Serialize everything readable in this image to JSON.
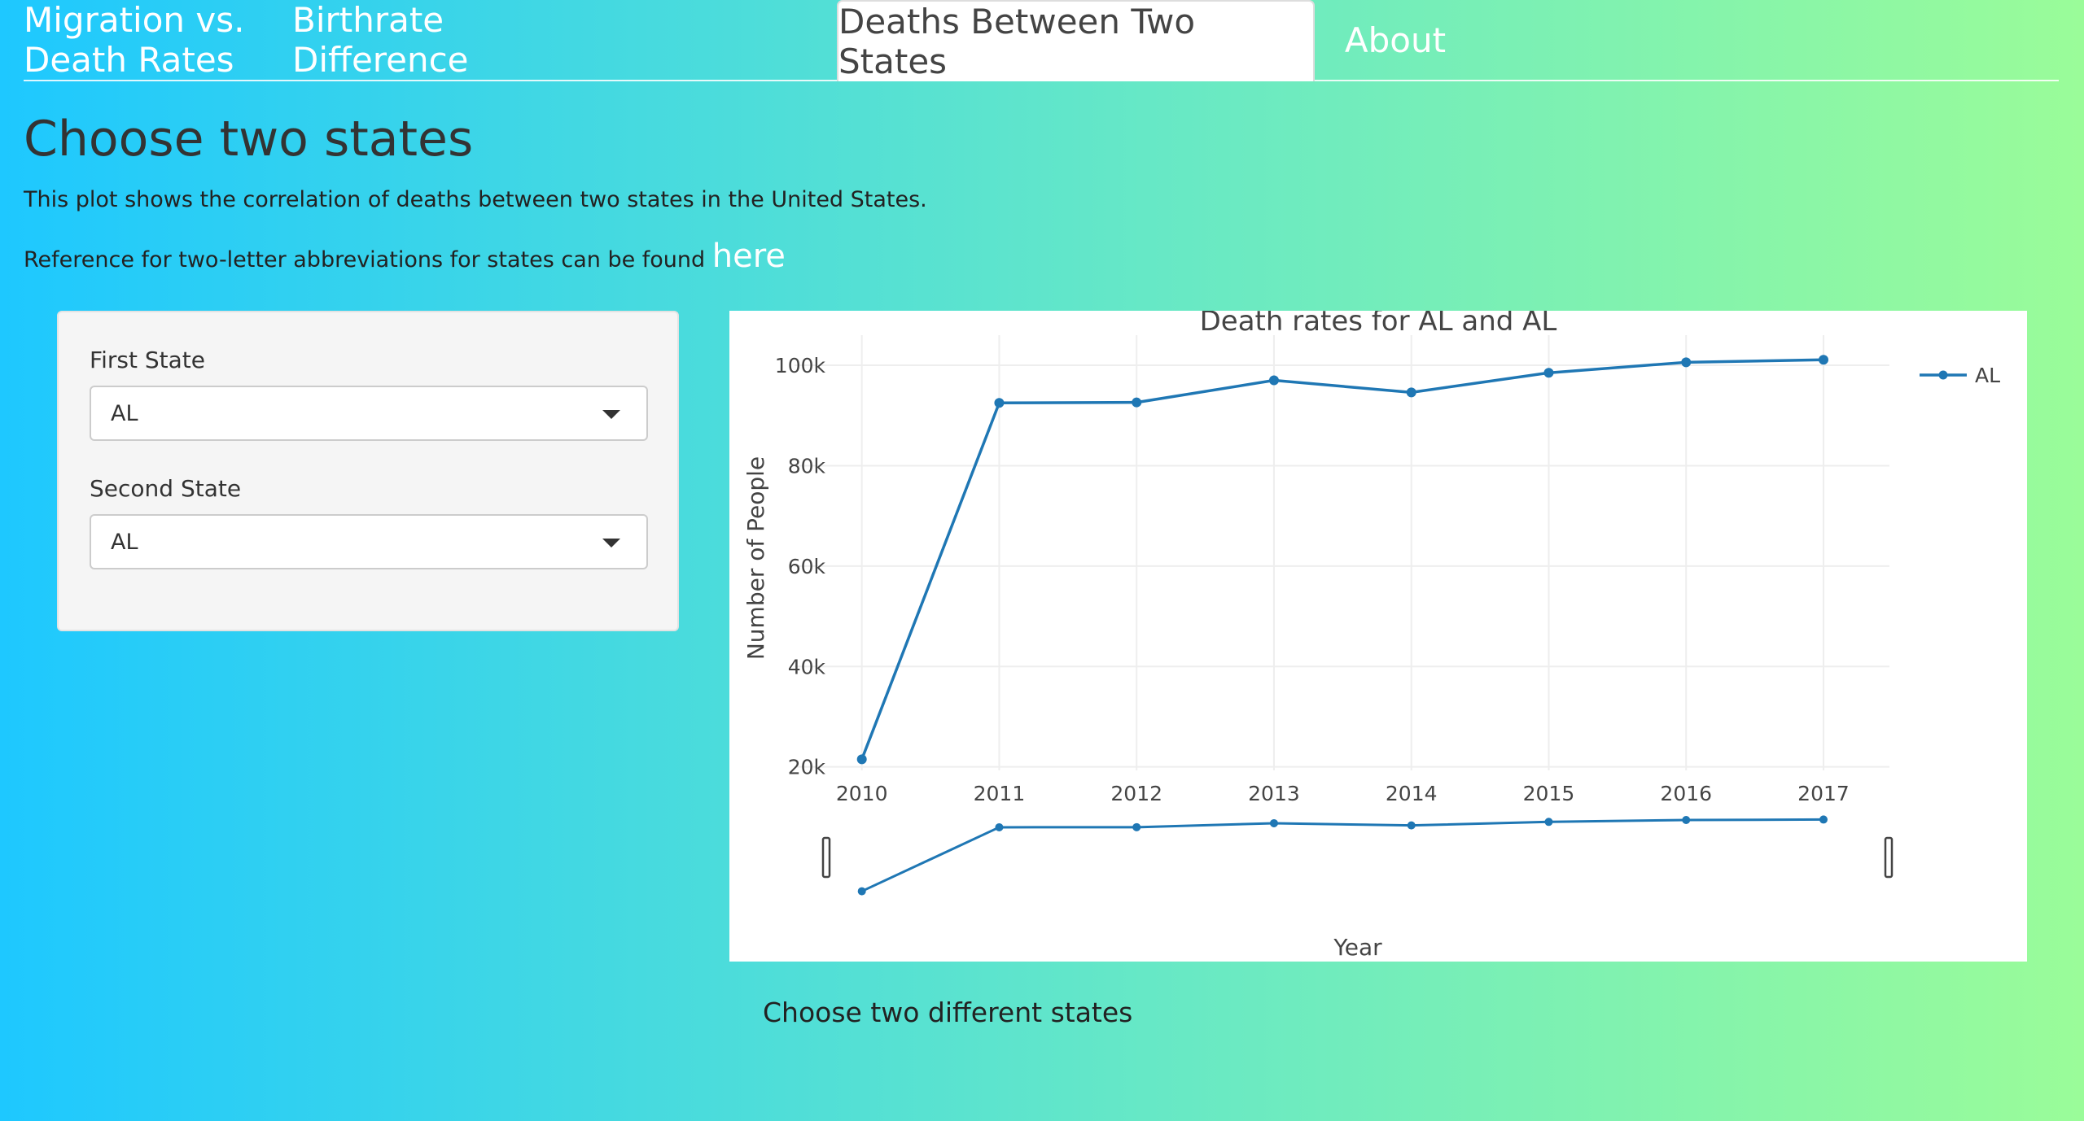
{
  "nav": {
    "tabs": [
      {
        "label": "Migration vs. Death Rates"
      },
      {
        "label": "Birthrate Difference"
      },
      {
        "label": "Deaths Between Two States"
      },
      {
        "label": "About"
      }
    ]
  },
  "page": {
    "title": "Choose two states",
    "description": "This plot shows the correlation of deaths between two states in the United States.",
    "reference_text": "Reference for two-letter abbreviations for states can be found",
    "reference_link": "here",
    "status_message": "Choose two different states"
  },
  "controls": {
    "first_state_label": "First State",
    "first_state_value": "AL",
    "second_state_label": "Second State",
    "second_state_value": "AL"
  },
  "colors": {
    "line": "#1f77b4",
    "grid": "#eeeeee"
  },
  "chart_data": {
    "type": "line",
    "title": "Death rates for  AL and AL",
    "xlabel": "Year",
    "ylabel": "Number of People",
    "x": [
      2010,
      2011,
      2012,
      2013,
      2014,
      2015,
      2016,
      2017
    ],
    "series": [
      {
        "name": "AL",
        "values": [
          21500,
          92500,
          92600,
          97000,
          94600,
          98500,
          100600,
          101100
        ]
      }
    ],
    "yticks": [
      20000,
      40000,
      60000,
      80000,
      100000
    ],
    "ytick_labels": [
      "20k",
      "40k",
      "60k",
      "80k",
      "100k"
    ],
    "ylim": [
      19300,
      106000
    ],
    "xlim": [
      2009.51,
      2017.48
    ],
    "legend": "top-right",
    "grid": true,
    "rangeslider": true
  }
}
